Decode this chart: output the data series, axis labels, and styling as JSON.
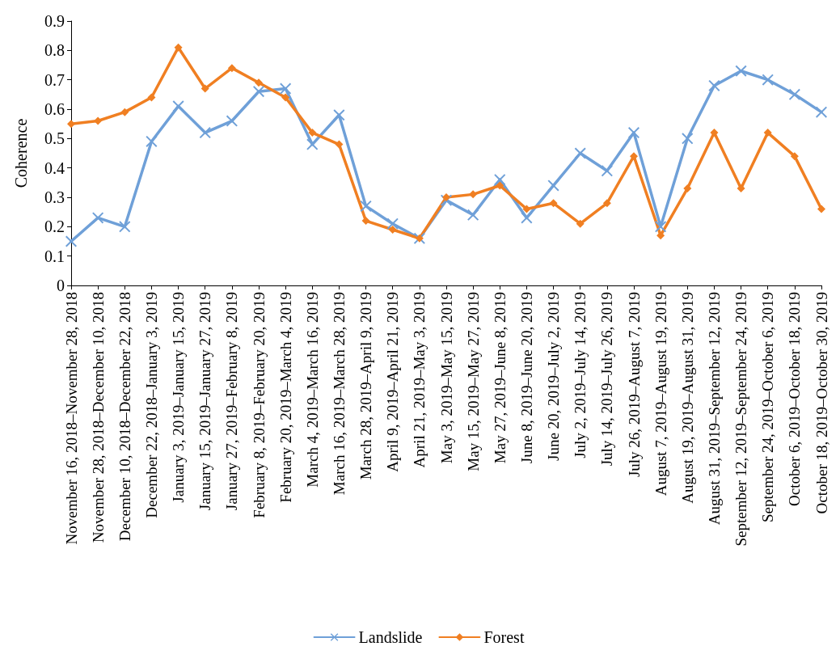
{
  "chart_data": {
    "type": "line",
    "ylabel": "Coherence",
    "categories": [
      "November 16, 2018–November 28, 2018",
      "November 28, 2018–December 10, 2018",
      "December 10, 2018–December 22, 2018",
      "December 22, 2018–January 3, 2019",
      "January 3, 2019–January 15, 2019",
      "January 15, 2019–January 27, 2019",
      "January 27, 2019–February 8, 2019",
      "February 8, 2019–February 20, 2019",
      "February 20, 2019–March 4, 2019",
      "March 4, 2019–March 16, 2019",
      "March 16, 2019–March 28, 2019",
      "March 28, 2019–April 9, 2019",
      "April 9, 2019–April 21, 2019",
      "April 21, 2019–May 3, 2019",
      "May 3, 2019–May 15, 2019",
      "May 15, 2019–May 27, 2019",
      "May 27, 2019–June 8, 2019",
      "June 8, 2019–June 20, 2019",
      "June 20, 2019–July 2, 2019",
      "July 2, 2019–July 14, 2019",
      "July 14, 2019–July 26, 2019",
      "July 26, 2019–August 7, 2019",
      "August 7, 2019–August 19, 2019",
      "August 19, 2019–August 31, 2019",
      "August 31, 2019–September 12, 2019",
      "September 12, 2019–September 24, 2019",
      "September 24, 2019–October 6, 2019",
      "October 6, 2019–October 18, 2019",
      "October 18, 2019–October 30, 2019"
    ],
    "series": [
      {
        "name": "Landslide",
        "color": "#6fa0d8",
        "marker": "cross",
        "values": [
          0.15,
          0.23,
          0.2,
          0.49,
          0.61,
          0.52,
          0.56,
          0.66,
          0.67,
          0.48,
          0.58,
          0.27,
          0.21,
          0.16,
          0.29,
          0.24,
          0.36,
          0.23,
          0.34,
          0.45,
          0.39,
          0.52,
          0.2,
          0.5,
          0.68,
          0.73,
          0.7,
          0.65,
          0.59
        ]
      },
      {
        "name": "Forest",
        "color": "#f07f22",
        "marker": "diamond",
        "values": [
          0.55,
          0.56,
          0.59,
          0.64,
          0.81,
          0.67,
          0.74,
          0.69,
          0.64,
          0.52,
          0.48,
          0.22,
          0.19,
          0.16,
          0.3,
          0.31,
          0.34,
          0.26,
          0.28,
          0.21,
          0.28,
          0.44,
          0.17,
          0.33,
          0.52,
          0.33,
          0.52,
          0.44,
          0.26
        ]
      }
    ],
    "ylim": [
      0,
      0.9
    ],
    "yticks": [
      0,
      0.1,
      0.2,
      0.3,
      0.4,
      0.5,
      0.6,
      0.7,
      0.8,
      0.9
    ],
    "grid": false,
    "legend": "bottom",
    "line_style": "solid"
  }
}
